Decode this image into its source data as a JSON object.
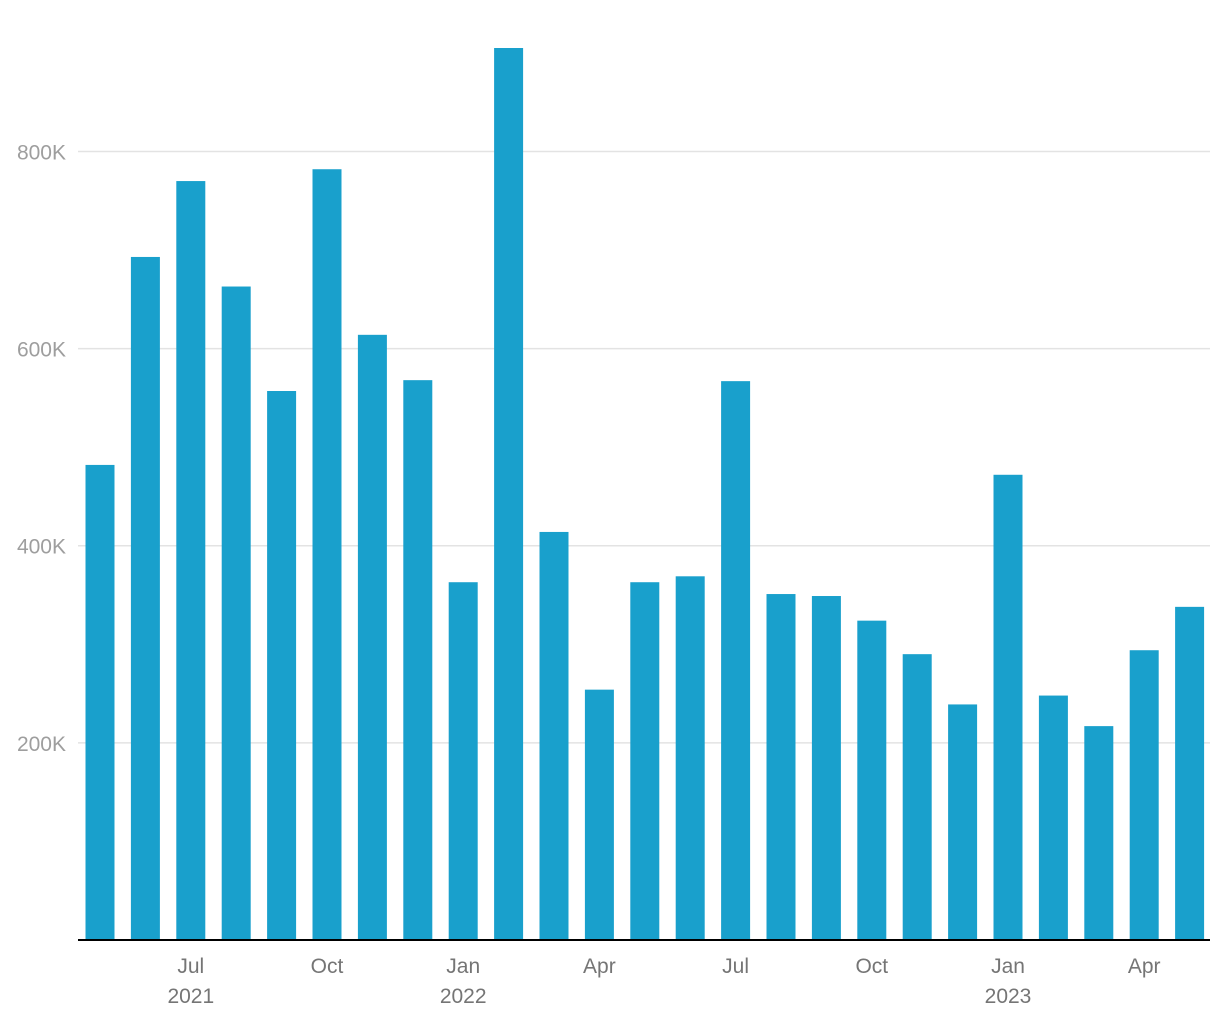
{
  "chart_data": {
    "type": "bar",
    "categories": [
      "2021-05",
      "2021-06",
      "2021-07",
      "2021-08",
      "2021-09",
      "2021-10",
      "2021-11",
      "2021-12",
      "2022-01",
      "2022-02",
      "2022-03",
      "2022-04",
      "2022-05",
      "2022-06",
      "2022-07",
      "2022-08",
      "2022-09",
      "2022-10",
      "2022-11",
      "2022-12",
      "2023-01",
      "2023-02",
      "2023-03",
      "2023-04",
      "2023-05"
    ],
    "values": [
      482000,
      693000,
      770000,
      663000,
      557000,
      782000,
      614000,
      568000,
      363000,
      905000,
      414000,
      254000,
      363000,
      369000,
      567000,
      351000,
      349000,
      324000,
      290000,
      239000,
      472000,
      248000,
      217000,
      294000,
      338000
    ],
    "ylim": [
      0,
      905000
    ],
    "y_ticks": [
      {
        "value": 200000,
        "label": "200K"
      },
      {
        "value": 400000,
        "label": "400K"
      },
      {
        "value": 600000,
        "label": "600K"
      },
      {
        "value": 800000,
        "label": "800K"
      }
    ],
    "x_ticks": [
      {
        "category": "2021-07",
        "label": "Jul",
        "year": "2021"
      },
      {
        "category": "2021-10",
        "label": "Oct",
        "year": ""
      },
      {
        "category": "2022-01",
        "label": "Jan",
        "year": "2022"
      },
      {
        "category": "2022-04",
        "label": "Apr",
        "year": ""
      },
      {
        "category": "2022-07",
        "label": "Jul",
        "year": ""
      },
      {
        "category": "2022-10",
        "label": "Oct",
        "year": ""
      },
      {
        "category": "2023-01",
        "label": "Jan",
        "year": "2023"
      },
      {
        "category": "2023-04",
        "label": "Apr",
        "year": ""
      }
    ],
    "grid": true,
    "legend": "none",
    "colors": {
      "bar": "#19a0cc",
      "grid": "#e3e3e3",
      "axis": "#000000"
    }
  }
}
